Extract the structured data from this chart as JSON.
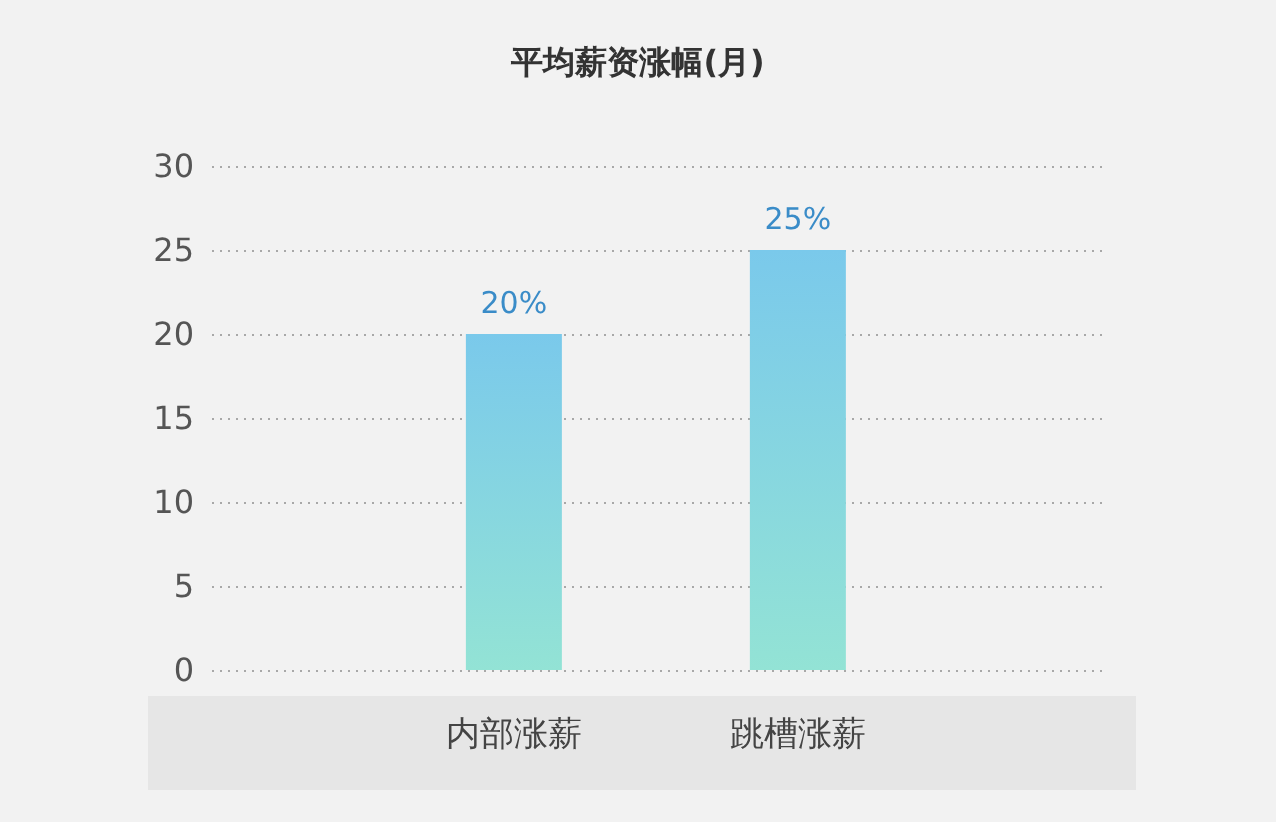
{
  "chart_data": {
    "type": "bar",
    "title": "平均薪资涨幅(月)",
    "categories": [
      "内部涨薪",
      "跳槽涨薪"
    ],
    "values": [
      20,
      25
    ],
    "value_labels": [
      "20%",
      "25%"
    ],
    "color": "#86d5e1",
    "ylim": [
      0,
      30
    ],
    "yticks": [
      0,
      5,
      10,
      15,
      20,
      25,
      30
    ],
    "grid": "y"
  }
}
